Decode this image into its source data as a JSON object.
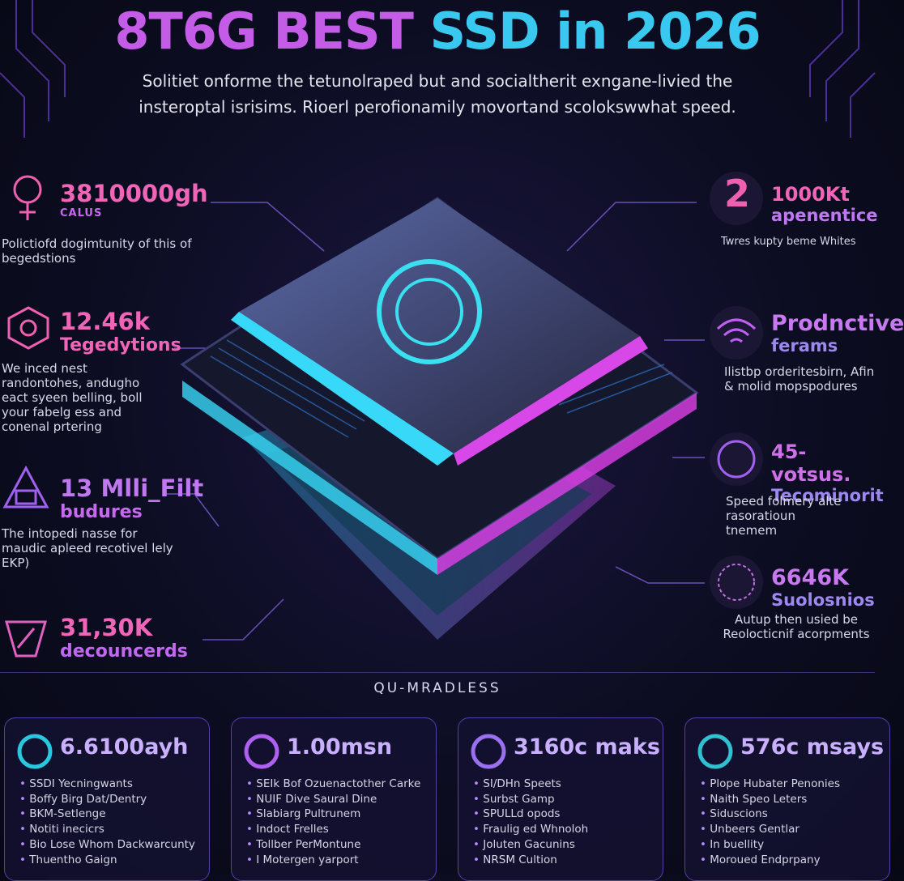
{
  "header": {
    "title_parts": [
      "8T6G BEST",
      "SSD in 2026"
    ],
    "subtitle_lines": [
      "Solitiet onforme the tetunolraped but and socialtherit exngane-livied the",
      "insteroptal isrisims. Rioerl perofionamily movortand scolokswwhat speed."
    ]
  },
  "left_stats": [
    {
      "value": "3810000gh",
      "label": "CALUS",
      "description": "Polictiofd dogimtunity of this of begedstions"
    },
    {
      "value": "12.46k",
      "label": "Tegedytions",
      "description": "We inced nest randontohes, andugho eact syeen belling, boll your fabelg ess and conenal prtering"
    },
    {
      "value": "13 Mlli_Filt",
      "label": "budures",
      "description": "The intopedi nasse for maudic apleed recotivel lely EKP)"
    },
    {
      "value": "31,30K",
      "label": "decouncerds"
    }
  ],
  "right_stats": [
    {
      "icon_text": "2",
      "value": "1000Kt",
      "label": "apenentice",
      "description": "Twres kupty beme Whites"
    },
    {
      "value": "Prodnctive",
      "label": "ferams",
      "description": "Ilistbp orderitesbirn, Afin & molid mopspodures"
    },
    {
      "value": "45-votsus.",
      "label": "Tecominorit",
      "description": "Speed folmery alte rasoratioun tnemem"
    },
    {
      "value": "6646K",
      "label": "Suolosnios",
      "description": "Autup then usied be Reolocticnif acorpments"
    }
  ],
  "divider": "QU-MRADLESS",
  "cards": [
    {
      "title": "6.6100ayh",
      "items": [
        "SSDI Yecningwants",
        "Boffy Birg Dat/Dentry",
        "BKM-Setlenge",
        "Notiti inecicrs",
        "Bio Lose Whom Dackwarcunty",
        "Thuentho Gaign"
      ]
    },
    {
      "title": "1.00msn",
      "items": [
        "SEIk Bof Ozuenactother Carke",
        "NUIF Dive Saural Dine",
        "Slabiarg Pultrunem",
        "Indoct Frelles",
        "Tollber PerMontune",
        "I Motergen yarport"
      ]
    },
    {
      "title": "3160c maks",
      "items": [
        "SI/DHn Speets",
        "Surbst Gamp",
        "SPULLd opods",
        "Fraulig ed Whnoloh",
        "Joluten Gacunins",
        "NRSM Cultion"
      ]
    },
    {
      "title": "576c msays",
      "items": [
        "Plope Hubater Penonies",
        "Naith Speo Leters",
        "Siduscions",
        "Unbeers Gentlar",
        "In buellity",
        "Moroued Endprpany"
      ]
    }
  ]
}
